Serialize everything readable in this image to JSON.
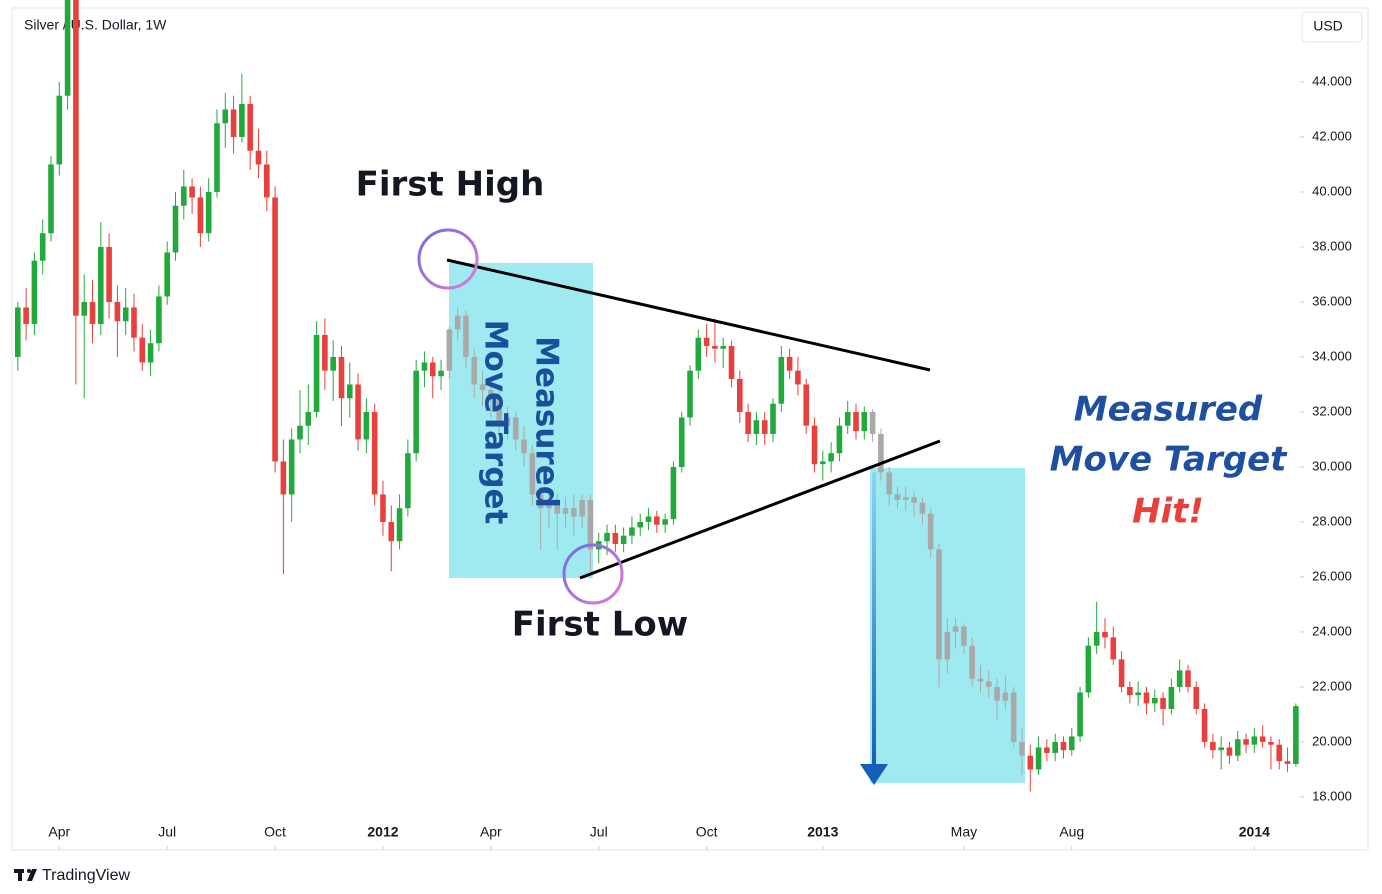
{
  "chart_data": {
    "type": "candlestick",
    "title": "Silver / U.S. Dollar, 1W",
    "currency": "USD",
    "brand": "TradingView",
    "annotations": {
      "first_high": "First High",
      "first_low": "First Low",
      "box_label": [
        "Measured",
        "MoveTarget"
      ],
      "target_hit": [
        "Measured",
        "Move Target",
        "Hit!"
      ]
    },
    "up_color": "#22a93b",
    "down_color": "#e8403c",
    "muted_color": "#a9a9a9",
    "grid": false,
    "xlim": [
      -0.7,
      154.5
    ],
    "xticks": [
      {
        "value": 5,
        "label": "Apr"
      },
      {
        "value": 18,
        "label": "Jul"
      },
      {
        "value": 31,
        "label": "Oct"
      },
      {
        "value": 44,
        "label": "2012"
      },
      {
        "value": 57,
        "label": "Apr"
      },
      {
        "value": 70,
        "label": "Jul"
      },
      {
        "value": 83,
        "label": "Oct"
      },
      {
        "value": 97,
        "label": "2013"
      },
      {
        "value": 114,
        "label": "May"
      },
      {
        "value": 127,
        "label": "Aug"
      },
      {
        "value": 149,
        "label": "2014"
      }
    ],
    "ylim": [
      16.07,
      46.69
    ],
    "yticks": [
      {
        "value": 18,
        "label": "18.000"
      },
      {
        "value": 20,
        "label": "20.000"
      },
      {
        "value": 22,
        "label": "22.000"
      },
      {
        "value": 24,
        "label": "24.000"
      },
      {
        "value": 26,
        "label": "26.000"
      },
      {
        "value": 28,
        "label": "28.000"
      },
      {
        "value": 30,
        "label": "30.000"
      },
      {
        "value": 32,
        "label": "32.000"
      },
      {
        "value": 34,
        "label": "34.000"
      },
      {
        "value": 36,
        "label": "36.000"
      },
      {
        "value": 38,
        "label": "38.000"
      },
      {
        "value": 40,
        "label": "40.000"
      },
      {
        "value": 42,
        "label": "42.000"
      },
      {
        "value": 44,
        "label": "44.000"
      }
    ],
    "candles": [
      [
        34.0,
        36.0,
        33.5,
        35.8
      ],
      [
        35.8,
        36.5,
        34.6,
        35.2
      ],
      [
        35.2,
        37.8,
        34.8,
        37.5
      ],
      [
        37.5,
        39.0,
        37.0,
        38.5
      ],
      [
        38.5,
        41.3,
        38.2,
        41.0
      ],
      [
        41.0,
        44.0,
        40.6,
        43.5
      ],
      [
        43.5,
        49.5,
        43.0,
        47.5
      ],
      [
        47.5,
        48.0,
        33.0,
        35.5
      ],
      [
        35.5,
        37.0,
        32.5,
        36.0
      ],
      [
        36.0,
        36.8,
        34.5,
        35.2
      ],
      [
        35.2,
        38.9,
        34.8,
        38.0
      ],
      [
        38.0,
        38.5,
        35.4,
        36.0
      ],
      [
        36.0,
        36.6,
        34.0,
        35.3
      ],
      [
        35.3,
        36.5,
        34.8,
        35.8
      ],
      [
        35.8,
        36.3,
        34.2,
        34.7
      ],
      [
        34.7,
        35.2,
        33.5,
        33.8
      ],
      [
        33.8,
        35.0,
        33.3,
        34.5
      ],
      [
        34.5,
        36.6,
        34.2,
        36.2
      ],
      [
        36.2,
        38.2,
        35.9,
        37.8
      ],
      [
        37.8,
        40.0,
        37.5,
        39.5
      ],
      [
        39.5,
        40.8,
        39.0,
        40.2
      ],
      [
        40.2,
        40.5,
        39.2,
        39.8
      ],
      [
        39.8,
        40.2,
        38.0,
        38.5
      ],
      [
        38.5,
        40.5,
        38.2,
        40.0
      ],
      [
        40.0,
        43.0,
        39.8,
        42.5
      ],
      [
        42.5,
        43.6,
        41.6,
        43.0
      ],
      [
        43.0,
        43.5,
        41.4,
        42.0
      ],
      [
        42.0,
        44.3,
        41.8,
        43.2
      ],
      [
        43.2,
        43.5,
        40.8,
        41.5
      ],
      [
        41.5,
        42.3,
        40.5,
        41.0
      ],
      [
        41.0,
        41.5,
        39.3,
        39.8
      ],
      [
        39.8,
        40.2,
        29.8,
        30.2
      ],
      [
        30.2,
        31.0,
        26.1,
        29.0
      ],
      [
        29.0,
        31.4,
        28.0,
        31.0
      ],
      [
        31.0,
        32.8,
        30.5,
        31.5
      ],
      [
        31.5,
        33.0,
        30.8,
        32.0
      ],
      [
        32.0,
        35.3,
        31.8,
        34.8
      ],
      [
        34.8,
        35.4,
        32.8,
        33.5
      ],
      [
        33.5,
        34.6,
        32.4,
        34.0
      ],
      [
        34.0,
        34.4,
        31.5,
        32.5
      ],
      [
        32.5,
        33.8,
        31.8,
        33.0
      ],
      [
        33.0,
        33.4,
        30.6,
        31.0
      ],
      [
        31.0,
        32.5,
        30.5,
        32.0
      ],
      [
        32.0,
        32.3,
        28.6,
        29.0
      ],
      [
        29.0,
        29.5,
        27.5,
        28.0
      ],
      [
        28.0,
        28.6,
        26.2,
        27.3
      ],
      [
        27.3,
        29.0,
        27.0,
        28.5
      ],
      [
        28.5,
        31.0,
        28.2,
        30.5
      ],
      [
        30.5,
        33.9,
        30.2,
        33.5
      ],
      [
        33.5,
        34.2,
        32.9,
        33.8
      ],
      [
        33.8,
        34.0,
        32.5,
        33.3
      ],
      [
        33.3,
        33.9,
        32.8,
        33.5
      ],
      [
        33.5,
        35.1,
        33.2,
        35.0
      ],
      [
        35.0,
        35.8,
        34.6,
        35.5
      ],
      [
        35.5,
        35.7,
        33.6,
        34.0
      ],
      [
        34.0,
        34.3,
        32.5,
        33.0
      ],
      [
        33.0,
        33.5,
        32.2,
        32.8
      ],
      [
        32.8,
        33.2,
        31.8,
        32.5
      ],
      [
        32.5,
        32.8,
        31.2,
        31.5
      ],
      [
        31.5,
        32.2,
        31.0,
        31.8
      ],
      [
        31.8,
        32.0,
        30.6,
        31.0
      ],
      [
        31.0,
        31.5,
        30.0,
        30.5
      ],
      [
        30.5,
        30.8,
        28.6,
        29.0
      ],
      [
        29.0,
        29.3,
        27.0,
        28.5
      ],
      [
        28.5,
        29.2,
        27.8,
        28.7
      ],
      [
        28.7,
        29.0,
        27.0,
        28.3
      ],
      [
        28.3,
        28.9,
        27.8,
        28.5
      ],
      [
        28.5,
        29.0,
        27.5,
        28.2
      ],
      [
        28.2,
        29.0,
        27.8,
        28.8
      ],
      [
        28.8,
        29.0,
        26.2,
        27.0
      ],
      [
        27.0,
        27.6,
        26.5,
        27.3
      ],
      [
        27.3,
        27.9,
        26.8,
        27.6
      ],
      [
        27.6,
        27.9,
        26.9,
        27.2
      ],
      [
        27.2,
        27.8,
        26.9,
        27.5
      ],
      [
        27.5,
        28.2,
        27.2,
        27.8
      ],
      [
        27.8,
        28.3,
        27.5,
        28.0
      ],
      [
        28.0,
        28.5,
        27.7,
        28.2
      ],
      [
        28.2,
        28.4,
        27.6,
        27.9
      ],
      [
        27.9,
        28.3,
        27.6,
        28.1
      ],
      [
        28.1,
        30.2,
        27.9,
        30.0
      ],
      [
        30.0,
        32.0,
        29.8,
        31.8
      ],
      [
        31.8,
        33.7,
        31.5,
        33.5
      ],
      [
        33.5,
        35.0,
        33.2,
        34.7
      ],
      [
        34.7,
        35.2,
        34.0,
        34.4
      ],
      [
        34.4,
        35.4,
        33.8,
        34.3
      ],
      [
        34.3,
        34.7,
        33.6,
        34.4
      ],
      [
        34.4,
        34.6,
        32.9,
        33.2
      ],
      [
        33.2,
        33.5,
        31.6,
        32.0
      ],
      [
        32.0,
        32.3,
        30.9,
        31.2
      ],
      [
        31.2,
        32.0,
        30.8,
        31.7
      ],
      [
        31.7,
        32.0,
        30.8,
        31.2
      ],
      [
        31.2,
        32.5,
        30.9,
        32.3
      ],
      [
        32.3,
        34.4,
        32.0,
        34.0
      ],
      [
        34.0,
        34.3,
        33.2,
        33.5
      ],
      [
        33.5,
        34.0,
        32.6,
        33.0
      ],
      [
        33.0,
        33.2,
        31.2,
        31.5
      ],
      [
        31.5,
        31.8,
        29.8,
        30.1
      ],
      [
        30.1,
        30.6,
        29.5,
        30.2
      ],
      [
        30.2,
        30.9,
        29.8,
        30.5
      ],
      [
        30.5,
        31.8,
        30.2,
        31.5
      ],
      [
        31.5,
        32.4,
        31.2,
        32.0
      ],
      [
        32.0,
        32.3,
        31.0,
        31.3
      ],
      [
        31.3,
        32.2,
        31.0,
        32.0
      ],
      [
        32.0,
        32.1,
        30.9,
        31.2
      ],
      [
        31.2,
        31.4,
        29.5,
        29.8
      ],
      [
        29.8,
        30.0,
        28.6,
        29.0
      ],
      [
        29.0,
        29.3,
        28.5,
        28.8
      ],
      [
        28.8,
        29.3,
        28.4,
        28.9
      ],
      [
        28.9,
        29.1,
        28.2,
        28.7
      ],
      [
        28.7,
        28.9,
        27.9,
        28.3
      ],
      [
        28.3,
        28.5,
        26.7,
        27.0
      ],
      [
        27.0,
        27.2,
        22.0,
        23.0
      ],
      [
        23.0,
        24.5,
        22.5,
        24.0
      ],
      [
        24.0,
        24.5,
        23.4,
        24.2
      ],
      [
        24.2,
        24.3,
        23.2,
        23.5
      ],
      [
        23.5,
        23.8,
        22.0,
        22.3
      ],
      [
        22.3,
        22.8,
        21.8,
        22.2
      ],
      [
        22.2,
        22.6,
        21.6,
        22.0
      ],
      [
        22.0,
        22.3,
        20.8,
        21.5
      ],
      [
        21.5,
        22.4,
        21.2,
        21.8
      ],
      [
        21.8,
        22.0,
        19.8,
        20.0
      ],
      [
        20.0,
        20.5,
        18.8,
        19.5
      ],
      [
        19.5,
        19.9,
        18.2,
        19.0
      ],
      [
        19.0,
        20.2,
        18.8,
        19.8
      ],
      [
        19.8,
        20.1,
        19.3,
        19.6
      ],
      [
        19.6,
        20.3,
        19.3,
        20.0
      ],
      [
        20.0,
        20.2,
        19.4,
        19.7
      ],
      [
        19.7,
        20.5,
        19.5,
        20.2
      ],
      [
        20.2,
        22.0,
        20.0,
        21.8
      ],
      [
        21.8,
        23.8,
        21.6,
        23.5
      ],
      [
        23.5,
        25.1,
        23.2,
        24.0
      ],
      [
        24.0,
        24.5,
        23.4,
        23.8
      ],
      [
        23.8,
        24.2,
        22.8,
        23.0
      ],
      [
        23.0,
        23.3,
        21.8,
        22.0
      ],
      [
        22.0,
        22.2,
        21.4,
        21.7
      ],
      [
        21.7,
        22.2,
        21.3,
        21.8
      ],
      [
        21.8,
        22.0,
        21.0,
        21.4
      ],
      [
        21.4,
        21.9,
        21.1,
        21.6
      ],
      [
        21.6,
        21.8,
        20.6,
        21.2
      ],
      [
        21.2,
        22.3,
        21.0,
        22.0
      ],
      [
        22.0,
        23.0,
        21.8,
        22.6
      ],
      [
        22.6,
        22.8,
        21.8,
        22.0
      ],
      [
        22.0,
        22.2,
        21.0,
        21.2
      ],
      [
        21.2,
        21.4,
        19.8,
        20.0
      ],
      [
        20.0,
        20.3,
        19.4,
        19.7
      ],
      [
        19.7,
        20.2,
        19.0,
        19.8
      ],
      [
        19.8,
        20.0,
        19.2,
        19.5
      ],
      [
        19.5,
        20.4,
        19.3,
        20.1
      ],
      [
        20.1,
        20.3,
        19.6,
        19.9
      ],
      [
        19.9,
        20.5,
        19.6,
        20.2
      ],
      [
        20.2,
        20.6,
        19.8,
        20.0
      ],
      [
        20.0,
        20.2,
        19.0,
        19.9
      ],
      [
        19.9,
        20.1,
        19.0,
        19.3
      ],
      [
        19.3,
        19.8,
        18.9,
        19.2
      ],
      [
        19.2,
        21.4,
        19.1,
        21.3
      ]
    ]
  }
}
